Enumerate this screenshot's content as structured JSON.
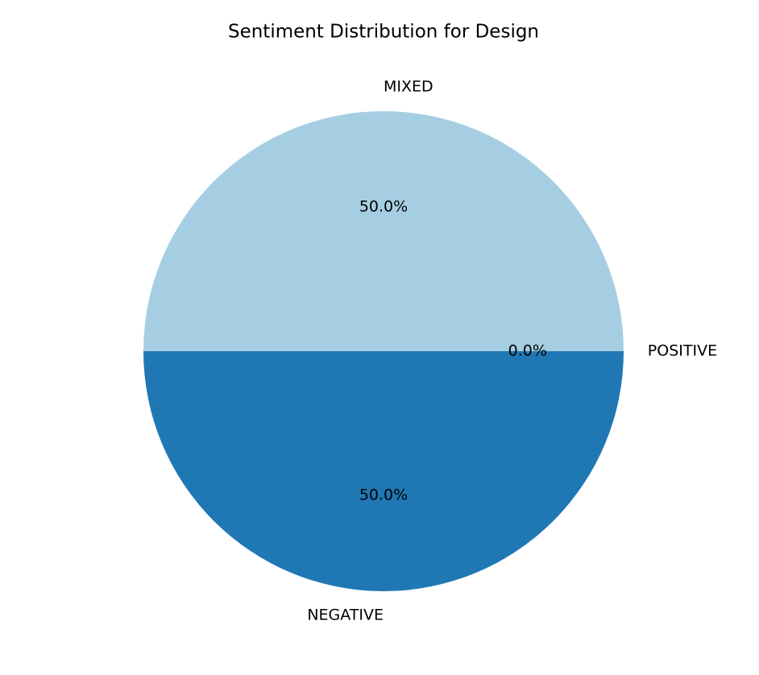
{
  "chart_data": {
    "type": "pie",
    "title": "Sentiment Distribution for Design",
    "categories": [
      "MIXED",
      "NEGATIVE",
      "POSITIVE"
    ],
    "values": [
      50,
      50,
      0
    ],
    "value_labels": [
      "50.0%",
      "50.0%",
      "0.0%"
    ],
    "colors": [
      "#a6cee3",
      "#1f78b4",
      "#b2df8a"
    ]
  }
}
